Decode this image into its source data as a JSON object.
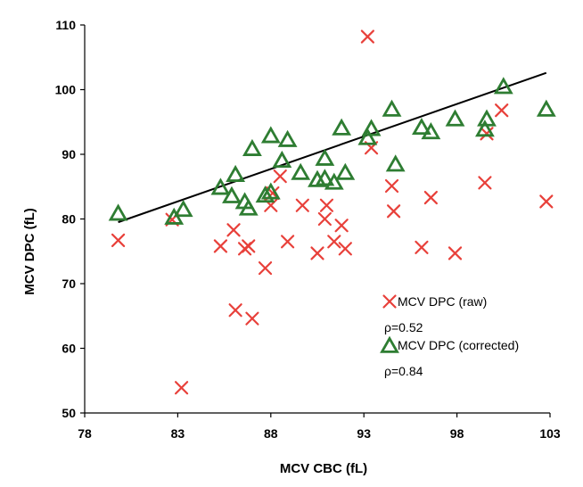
{
  "chart_data": {
    "type": "scatter",
    "title": "",
    "xlabel": "MCV CBC (fL)",
    "ylabel": "MCV DPC  (fL)",
    "xlim": [
      78,
      103
    ],
    "ylim": [
      50,
      110
    ],
    "xticks": [
      78,
      83,
      88,
      93,
      98,
      103
    ],
    "yticks": [
      50,
      60,
      70,
      80,
      90,
      100,
      110
    ],
    "grid": false,
    "legend_position": "bottom-right",
    "series": [
      {
        "name": "MCV DPC (raw)",
        "marker": "x",
        "color": "#e8403a",
        "points": [
          [
            79.8,
            76.7
          ],
          [
            82.7,
            79.9
          ],
          [
            83.2,
            53.9
          ],
          [
            85.3,
            75.8
          ],
          [
            86.0,
            78.3
          ],
          [
            86.1,
            65.9
          ],
          [
            86.6,
            75.4
          ],
          [
            86.8,
            75.8
          ],
          [
            87.0,
            64.6
          ],
          [
            87.7,
            72.4
          ],
          [
            88.0,
            82.1
          ],
          [
            88.1,
            84.0
          ],
          [
            88.5,
            86.6
          ],
          [
            88.9,
            76.5
          ],
          [
            89.7,
            82.1
          ],
          [
            90.5,
            74.7
          ],
          [
            90.9,
            80.0
          ],
          [
            91.0,
            82.1
          ],
          [
            91.4,
            76.5
          ],
          [
            91.8,
            79.0
          ],
          [
            92.0,
            75.4
          ],
          [
            93.2,
            108.2
          ],
          [
            93.4,
            91.0
          ],
          [
            94.5,
            85.1
          ],
          [
            94.6,
            81.2
          ],
          [
            96.1,
            75.6
          ],
          [
            96.6,
            83.3
          ],
          [
            97.9,
            74.7
          ],
          [
            99.5,
            85.6
          ],
          [
            99.6,
            93.2
          ],
          [
            100.4,
            96.8
          ],
          [
            102.8,
            82.7
          ]
        ]
      },
      {
        "name": "MCV DPC (corrected)",
        "marker": "triangle",
        "color": "#2e7d32",
        "points": [
          [
            79.8,
            80.8
          ],
          [
            82.8,
            80.2
          ],
          [
            83.3,
            81.4
          ],
          [
            85.3,
            84.8
          ],
          [
            85.9,
            83.5
          ],
          [
            86.1,
            86.8
          ],
          [
            86.6,
            82.6
          ],
          [
            86.8,
            81.6
          ],
          [
            87.0,
            90.8
          ],
          [
            87.7,
            83.6
          ],
          [
            88.0,
            92.8
          ],
          [
            88.0,
            84.1
          ],
          [
            88.6,
            89.0
          ],
          [
            88.9,
            92.2
          ],
          [
            89.6,
            87.1
          ],
          [
            90.5,
            86.0
          ],
          [
            90.9,
            89.3
          ],
          [
            90.9,
            86.2
          ],
          [
            91.4,
            85.6
          ],
          [
            91.8,
            94.0
          ],
          [
            92.0,
            87.1
          ],
          [
            93.2,
            92.5
          ],
          [
            93.4,
            93.9
          ],
          [
            94.5,
            96.9
          ],
          [
            94.7,
            88.4
          ],
          [
            96.1,
            94.1
          ],
          [
            96.6,
            93.4
          ],
          [
            97.9,
            95.4
          ],
          [
            99.5,
            93.8
          ],
          [
            99.6,
            95.4
          ],
          [
            100.5,
            100.4
          ],
          [
            102.8,
            96.9
          ]
        ]
      }
    ],
    "trendline": {
      "color": "#000000",
      "from": [
        79.8,
        79.5
      ],
      "to": [
        102.8,
        102.6
      ]
    },
    "annotations": [
      {
        "text": "ρ=0.52",
        "after_series": 0
      },
      {
        "text": "ρ=0.84",
        "after_series": 1
      }
    ]
  }
}
